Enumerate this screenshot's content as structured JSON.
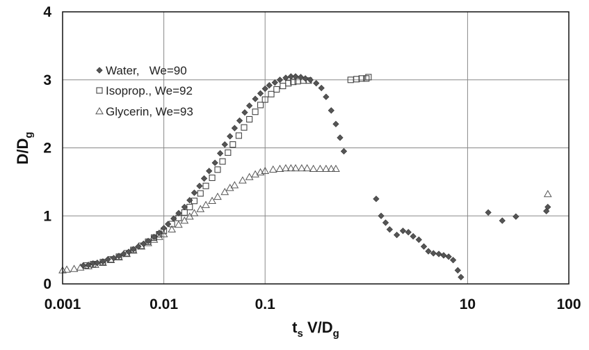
{
  "chart_data": {
    "type": "scatter",
    "xscale": "log",
    "xlim": [
      0.001,
      100
    ],
    "ylim": [
      0,
      4
    ],
    "grid": true,
    "legend_placement": "top-left",
    "x_ticks": [
      "0.001",
      "0.01",
      "0.1",
      "10",
      "100"
    ],
    "x_tick_values": [
      0.001,
      0.01,
      0.1,
      10,
      100
    ],
    "y_ticks": [
      "0",
      "1",
      "2",
      "3",
      "4"
    ],
    "y_tick_values": [
      0,
      1,
      2,
      3,
      4
    ],
    "ylabel": {
      "main": "D/D",
      "sub": "g"
    },
    "xlabel": {
      "pre": "t",
      "sub1": "s",
      "mid": " V/D",
      "sub2": "g"
    },
    "series": [
      {
        "name": "Water,   We=90",
        "marker": "diamond",
        "color": "#555555",
        "points": [
          [
            0.0016,
            0.27
          ],
          [
            0.0018,
            0.28
          ],
          [
            0.002,
            0.3
          ],
          [
            0.0022,
            0.31
          ],
          [
            0.0025,
            0.33
          ],
          [
            0.0028,
            0.36
          ],
          [
            0.0032,
            0.38
          ],
          [
            0.0036,
            0.41
          ],
          [
            0.004,
            0.44
          ],
          [
            0.0045,
            0.47
          ],
          [
            0.005,
            0.51
          ],
          [
            0.0056,
            0.55
          ],
          [
            0.0063,
            0.59
          ],
          [
            0.007,
            0.63
          ],
          [
            0.008,
            0.69
          ],
          [
            0.009,
            0.75
          ],
          [
            0.01,
            0.82
          ],
          [
            0.011,
            0.88
          ],
          [
            0.0125,
            0.96
          ],
          [
            0.014,
            1.04
          ],
          [
            0.016,
            1.13
          ],
          [
            0.018,
            1.23
          ],
          [
            0.02,
            1.34
          ],
          [
            0.0225,
            1.44
          ],
          [
            0.025,
            1.55
          ],
          [
            0.028,
            1.66
          ],
          [
            0.032,
            1.78
          ],
          [
            0.036,
            1.92
          ],
          [
            0.04,
            2.05
          ],
          [
            0.045,
            2.17
          ],
          [
            0.05,
            2.29
          ],
          [
            0.056,
            2.4
          ],
          [
            0.063,
            2.52
          ],
          [
            0.07,
            2.62
          ],
          [
            0.08,
            2.72
          ],
          [
            0.09,
            2.8
          ],
          [
            0.1,
            2.87
          ],
          [
            0.11,
            2.92
          ],
          [
            0.125,
            2.96
          ],
          [
            0.14,
            3.0
          ],
          [
            0.16,
            3.03
          ],
          [
            0.18,
            3.05
          ],
          [
            0.2,
            3.05
          ],
          [
            0.225,
            3.04
          ],
          [
            0.25,
            3.02
          ],
          [
            0.28,
            3.0
          ],
          [
            0.32,
            2.95
          ],
          [
            0.36,
            2.88
          ],
          [
            0.4,
            2.75
          ],
          [
            0.45,
            2.55
          ],
          [
            0.5,
            2.35
          ],
          [
            0.55,
            2.15
          ],
          [
            0.6,
            1.95
          ],
          [
            1.25,
            1.25
          ],
          [
            1.4,
            1.0
          ],
          [
            1.55,
            0.9
          ],
          [
            1.7,
            0.8
          ],
          [
            2.0,
            0.72
          ],
          [
            2.3,
            0.78
          ],
          [
            2.6,
            0.76
          ],
          [
            2.9,
            0.7
          ],
          [
            3.3,
            0.65
          ],
          [
            3.7,
            0.55
          ],
          [
            4.1,
            0.48
          ],
          [
            4.6,
            0.45
          ],
          [
            5.2,
            0.44
          ],
          [
            5.8,
            0.42
          ],
          [
            6.5,
            0.4
          ],
          [
            7.2,
            0.35
          ],
          [
            8.0,
            0.2
          ],
          [
            8.6,
            0.1
          ],
          [
            16,
            1.05
          ],
          [
            22,
            0.93
          ],
          [
            30,
            0.99
          ],
          [
            60,
            1.07
          ],
          [
            62,
            1.13
          ]
        ]
      },
      {
        "name": "Isoprop., We=92",
        "marker": "square",
        "color": "#444444",
        "points": [
          [
            0.0017,
            0.27
          ],
          [
            0.002,
            0.29
          ],
          [
            0.0025,
            0.32
          ],
          [
            0.003,
            0.36
          ],
          [
            0.0036,
            0.4
          ],
          [
            0.0043,
            0.45
          ],
          [
            0.005,
            0.5
          ],
          [
            0.006,
            0.56
          ],
          [
            0.007,
            0.62
          ],
          [
            0.008,
            0.68
          ],
          [
            0.009,
            0.73
          ],
          [
            0.01,
            0.78
          ],
          [
            0.012,
            0.88
          ],
          [
            0.014,
            0.97
          ],
          [
            0.016,
            1.05
          ],
          [
            0.018,
            1.13
          ],
          [
            0.02,
            1.22
          ],
          [
            0.023,
            1.33
          ],
          [
            0.026,
            1.44
          ],
          [
            0.03,
            1.56
          ],
          [
            0.034,
            1.68
          ],
          [
            0.038,
            1.8
          ],
          [
            0.043,
            1.93
          ],
          [
            0.048,
            2.05
          ],
          [
            0.055,
            2.18
          ],
          [
            0.062,
            2.3
          ],
          [
            0.07,
            2.42
          ],
          [
            0.08,
            2.53
          ],
          [
            0.09,
            2.63
          ],
          [
            0.1,
            2.71
          ],
          [
            0.115,
            2.79
          ],
          [
            0.13,
            2.86
          ],
          [
            0.15,
            2.91
          ],
          [
            0.17,
            2.95
          ],
          [
            0.19,
            2.97
          ],
          [
            0.21,
            2.98
          ],
          [
            0.24,
            2.99
          ],
          [
            0.27,
            2.99
          ],
          [
            0.7,
            3.0
          ],
          [
            0.8,
            3.01
          ],
          [
            0.9,
            3.02
          ],
          [
            1.0,
            3.02
          ],
          [
            1.05,
            3.04
          ]
        ]
      },
      {
        "name": "Glycerin, We=93",
        "marker": "triangle",
        "color": "#555555",
        "points": [
          [
            0.001,
            0.2
          ],
          [
            0.0011,
            0.21
          ],
          [
            0.0013,
            0.22
          ],
          [
            0.0015,
            0.24
          ],
          [
            0.0018,
            0.26
          ],
          [
            0.0021,
            0.28
          ],
          [
            0.0025,
            0.31
          ],
          [
            0.003,
            0.35
          ],
          [
            0.0036,
            0.39
          ],
          [
            0.0043,
            0.44
          ],
          [
            0.005,
            0.49
          ],
          [
            0.006,
            0.55
          ],
          [
            0.007,
            0.6
          ],
          [
            0.008,
            0.65
          ],
          [
            0.009,
            0.69
          ],
          [
            0.01,
            0.73
          ],
          [
            0.012,
            0.8
          ],
          [
            0.014,
            0.87
          ],
          [
            0.016,
            0.93
          ],
          [
            0.018,
            0.99
          ],
          [
            0.02,
            1.04
          ],
          [
            0.023,
            1.1
          ],
          [
            0.026,
            1.16
          ],
          [
            0.03,
            1.22
          ],
          [
            0.034,
            1.28
          ],
          [
            0.04,
            1.35
          ],
          [
            0.045,
            1.41
          ],
          [
            0.05,
            1.45
          ],
          [
            0.06,
            1.52
          ],
          [
            0.07,
            1.57
          ],
          [
            0.08,
            1.61
          ],
          [
            0.09,
            1.64
          ],
          [
            0.1,
            1.66
          ],
          [
            0.12,
            1.68
          ],
          [
            0.14,
            1.69
          ],
          [
            0.16,
            1.7
          ],
          [
            0.18,
            1.7
          ],
          [
            0.2,
            1.7
          ],
          [
            0.23,
            1.7
          ],
          [
            0.26,
            1.7
          ],
          [
            0.3,
            1.69
          ],
          [
            0.35,
            1.69
          ],
          [
            0.4,
            1.69
          ],
          [
            0.45,
            1.69
          ],
          [
            0.5,
            1.69
          ],
          [
            62,
            1.32
          ]
        ]
      }
    ]
  }
}
